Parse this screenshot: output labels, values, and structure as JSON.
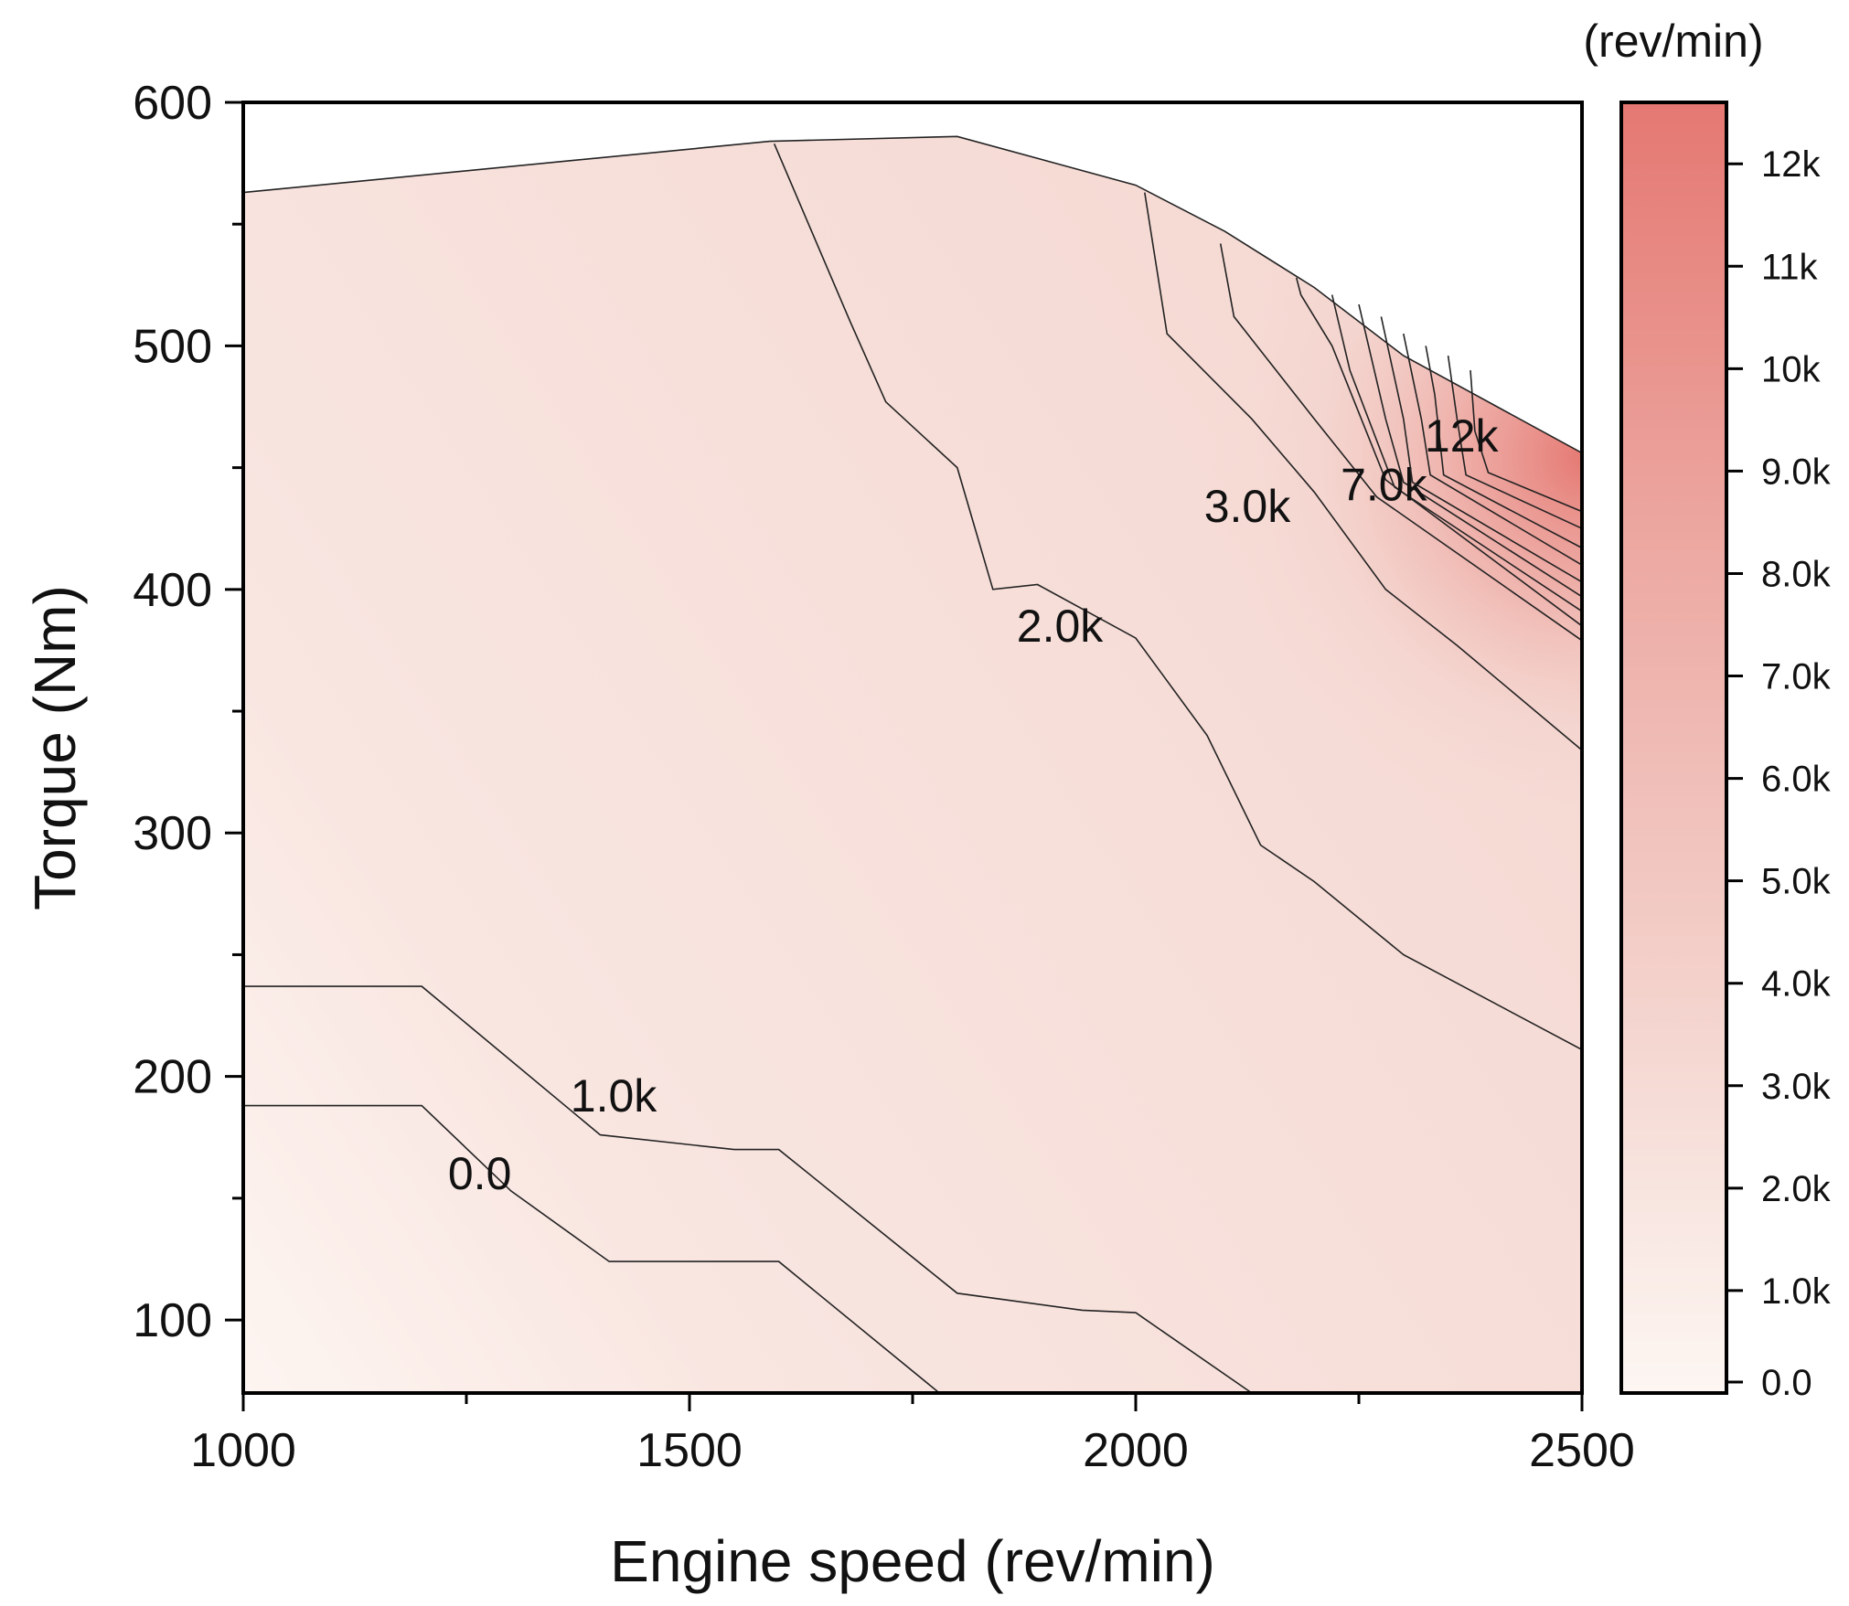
{
  "chart_data": {
    "type": "contour",
    "title": "",
    "xlabel": "Engine speed (rev/min)",
    "ylabel": "Torque (Nm)",
    "xlim": [
      1000,
      2500
    ],
    "ylim": [
      70,
      600
    ],
    "xticks": [
      1000,
      1500,
      2000,
      2500
    ],
    "xtick_labels": [
      "1000",
      "1500",
      "2000",
      "2500"
    ],
    "yticks": [
      100,
      200,
      300,
      400,
      500,
      600
    ],
    "ytick_labels": [
      "100",
      "200",
      "300",
      "400",
      "500",
      "600"
    ],
    "colorbar": {
      "unit_label": "(rev/min)",
      "min": 0,
      "max": 12600,
      "ticks": [
        0,
        1000,
        2000,
        3000,
        4000,
        5000,
        6000,
        7000,
        8000,
        9000,
        10000,
        11000,
        12000
      ],
      "tick_labels": [
        "0.0",
        "1.0k",
        "2.0k",
        "3.0k",
        "4.0k",
        "5.0k",
        "6.0k",
        "7.0k",
        "8.0k",
        "9.0k",
        "10k",
        "11k",
        "12k"
      ],
      "color_low": "#fdf6f2",
      "color_high": "#e57872"
    },
    "boundary": [
      [
        1000,
        563
      ],
      [
        1590,
        584
      ],
      [
        1800,
        586
      ],
      [
        2000,
        566
      ],
      [
        2100,
        547
      ],
      [
        2200,
        524
      ],
      [
        2300,
        496
      ],
      [
        2500,
        456
      ],
      [
        2500,
        70
      ],
      [
        1000,
        70
      ]
    ],
    "contours": [
      {
        "level": 0,
        "label": "0.0",
        "label_at": [
          1265,
          160
        ],
        "points": [
          [
            1000,
            188
          ],
          [
            1200,
            188
          ],
          [
            1300,
            153
          ],
          [
            1410,
            124
          ],
          [
            1600,
            124
          ],
          [
            1780,
            70
          ]
        ]
      },
      {
        "level": 1000,
        "label": "1.0k",
        "label_at": [
          1415,
          192
        ],
        "points": [
          [
            1000,
            237
          ],
          [
            1200,
            237
          ],
          [
            1400,
            176
          ],
          [
            1550,
            170
          ],
          [
            1600,
            170
          ],
          [
            1800,
            111
          ],
          [
            1940,
            104
          ],
          [
            2000,
            103
          ],
          [
            2130,
            70
          ]
        ]
      },
      {
        "level": 2000,
        "label": "2.0k",
        "label_at": [
          1915,
          385
        ],
        "points": [
          [
            1595,
            583
          ],
          [
            1680,
            510
          ],
          [
            1720,
            477
          ],
          [
            1800,
            450
          ],
          [
            1840,
            400
          ],
          [
            1890,
            402
          ],
          [
            2000,
            380
          ],
          [
            2080,
            340
          ],
          [
            2140,
            295
          ],
          [
            2200,
            280
          ],
          [
            2300,
            250
          ],
          [
            2500,
            211
          ]
        ]
      },
      {
        "level": 3000,
        "label": "3.0k",
        "label_at": [
          2125,
          434
        ],
        "points": [
          [
            2010,
            563
          ],
          [
            2035,
            505
          ],
          [
            2130,
            470
          ],
          [
            2200,
            440
          ],
          [
            2280,
            400
          ],
          [
            2360,
            377
          ],
          [
            2500,
            334
          ]
        ]
      },
      {
        "level": 4000,
        "label": "",
        "points": [
          [
            2095,
            542
          ],
          [
            2110,
            512
          ],
          [
            2200,
            470
          ],
          [
            2270,
            438
          ],
          [
            2500,
            379
          ]
        ]
      },
      {
        "level": 5000,
        "label": "",
        "points": [
          [
            2180,
            528
          ],
          [
            2185,
            521
          ],
          [
            2220,
            500
          ],
          [
            2280,
            445
          ],
          [
            2500,
            385
          ]
        ]
      },
      {
        "level": 6000,
        "label": "",
        "points": [
          [
            2220,
            521
          ],
          [
            2240,
            490
          ],
          [
            2290,
            442
          ],
          [
            2500,
            391
          ]
        ]
      },
      {
        "level": 7000,
        "label": "7.0k",
        "label_at": [
          2278,
          443
        ],
        "points": [
          [
            2250,
            517
          ],
          [
            2280,
            470
          ],
          [
            2300,
            444
          ],
          [
            2500,
            397
          ]
        ]
      },
      {
        "level": 8000,
        "label": "",
        "points": [
          [
            2275,
            512
          ],
          [
            2300,
            470
          ],
          [
            2310,
            444
          ],
          [
            2500,
            403
          ]
        ]
      },
      {
        "level": 9000,
        "label": "",
        "points": [
          [
            2300,
            505
          ],
          [
            2320,
            470
          ],
          [
            2330,
            447
          ],
          [
            2500,
            410
          ]
        ]
      },
      {
        "level": 10000,
        "label": "",
        "points": [
          [
            2325,
            500
          ],
          [
            2335,
            480
          ],
          [
            2345,
            447
          ],
          [
            2500,
            417
          ]
        ]
      },
      {
        "level": 11000,
        "label": "",
        "points": [
          [
            2350,
            496
          ],
          [
            2360,
            470
          ],
          [
            2370,
            447
          ],
          [
            2500,
            425
          ]
        ]
      },
      {
        "level": 12000,
        "label": "12k",
        "label_at": [
          2365,
          463
        ],
        "points": [
          [
            2375,
            490
          ],
          [
            2380,
            465
          ],
          [
            2395,
            448
          ],
          [
            2500,
            432
          ]
        ]
      }
    ]
  }
}
